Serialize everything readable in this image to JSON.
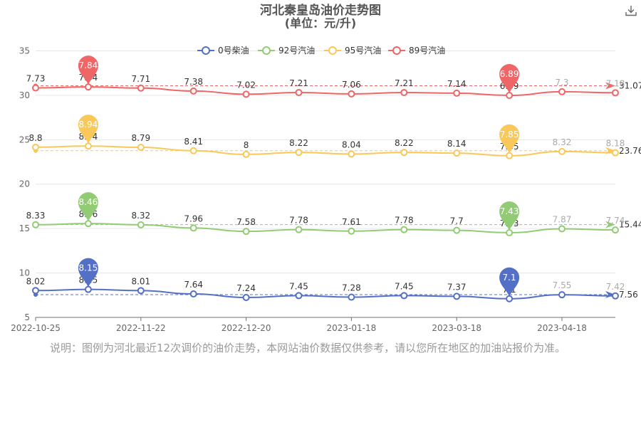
{
  "title": "河北秦皇岛油价走势图",
  "subtitle": "(单位：元/升)",
  "note": "说明：图例为河北最近12次调价的油价走势，本网站油价数据仅供参考，请以您所在地区的加油站报价为准。",
  "download_icon": "download-icon",
  "chart_data": {
    "type": "line",
    "x_tick_labels": [
      "2022-10-25",
      "2022-11-22",
      "2022-12-20",
      "2023-01-18",
      "2023-03-18",
      "2023-04-18"
    ],
    "point_count": 12,
    "y_ticks": [
      5,
      10,
      15,
      20,
      25,
      30,
      35
    ],
    "ylim": [
      5,
      36
    ],
    "grid": true,
    "legend_position": "top",
    "series": [
      {
        "name": "0号柴油",
        "color": "#5470c6",
        "values": [
          8.02,
          8.15,
          8.01,
          7.64,
          7.24,
          7.45,
          7.28,
          7.45,
          7.37,
          7.1,
          7.55,
          7.42
        ],
        "avg_label": "7.56",
        "max_label": "8.15",
        "min_label": "7.1"
      },
      {
        "name": "92号汽油",
        "color": "#91cc75",
        "values": [
          8.33,
          8.46,
          8.32,
          7.96,
          7.58,
          7.78,
          7.61,
          7.78,
          7.7,
          7.43,
          7.87,
          7.74
        ],
        "avg_label": "15.44",
        "max_label": "8.46",
        "min_label": "7.43"
      },
      {
        "name": "95号汽油",
        "color": "#fac858",
        "values": [
          8.8,
          8.94,
          8.79,
          8.41,
          8,
          8.22,
          8.04,
          8.22,
          8.14,
          7.85,
          8.32,
          8.18
        ],
        "avg_label": "23.76",
        "max_label": "8.94",
        "min_label": "7.85"
      },
      {
        "name": "89号汽油",
        "color": "#ee6666",
        "values": [
          7.73,
          7.84,
          7.71,
          7.38,
          7.02,
          7.21,
          7.06,
          7.21,
          7.14,
          6.89,
          7.3,
          7.18
        ],
        "avg_label": "31.07",
        "max_label": "7.84",
        "min_label": "6.89"
      }
    ]
  }
}
